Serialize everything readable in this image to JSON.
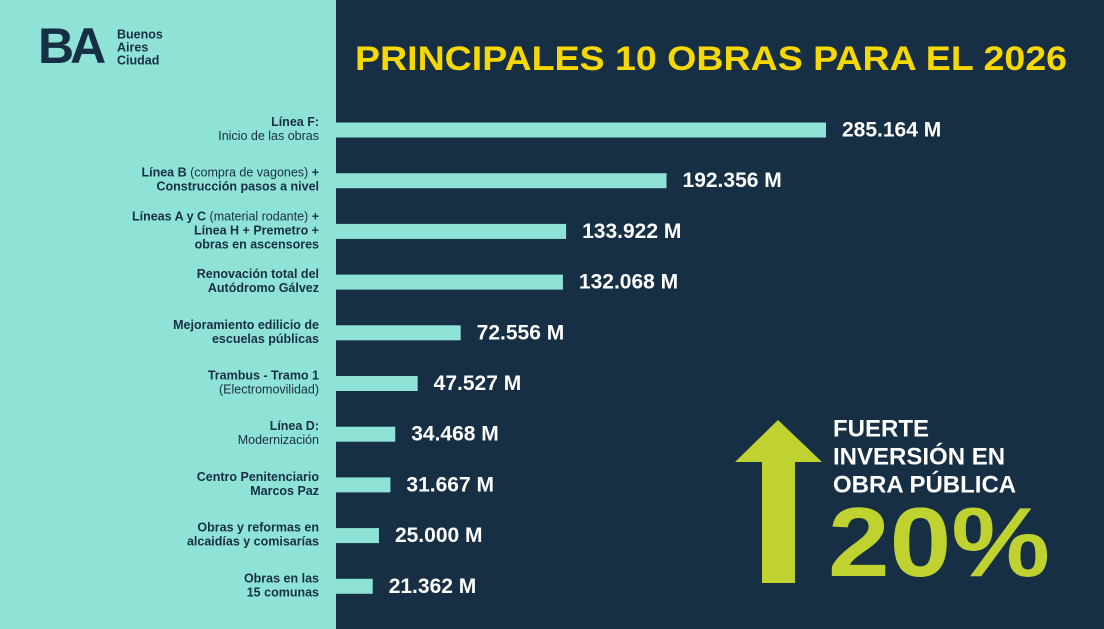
{
  "logo": {
    "mark": "BA",
    "lines": [
      "Buenos",
      "Aires",
      "Ciudad"
    ]
  },
  "chart_data": {
    "type": "bar",
    "orientation": "horizontal",
    "title": "PRINCIPALES  10 OBRAS PARA EL 2026",
    "categories": [
      [
        [
          {
            "text": "Línea F:",
            "bold": true
          }
        ],
        [
          {
            "text": "Inicio de las obras",
            "bold": false
          }
        ]
      ],
      [
        [
          {
            "text": "Línea B",
            "bold": true
          },
          {
            "text": " (compra de vagones) ",
            "bold": false
          },
          {
            "text": "+",
            "bold": true
          }
        ],
        [
          {
            "text": "Construcción pasos a nivel",
            "bold": true
          }
        ]
      ],
      [
        [
          {
            "text": "Líneas A y C",
            "bold": true
          },
          {
            "text": " (material rodante) ",
            "bold": false
          },
          {
            "text": "+",
            "bold": true
          }
        ],
        [
          {
            "text": "Línea H + Premetro +",
            "bold": true
          }
        ],
        [
          {
            "text": "obras en ascensores",
            "bold": true
          }
        ]
      ],
      [
        [
          {
            "text": "Renovación total del",
            "bold": true
          }
        ],
        [
          {
            "text": "Autódromo Gálvez",
            "bold": true
          }
        ]
      ],
      [
        [
          {
            "text": "Mejoramiento edilicio de",
            "bold": true
          }
        ],
        [
          {
            "text": "escuelas públicas",
            "bold": true
          }
        ]
      ],
      [
        [
          {
            "text": "Trambus - Tramo 1",
            "bold": true
          }
        ],
        [
          {
            "text": "(Electromovilidad)",
            "bold": false
          }
        ]
      ],
      [
        [
          {
            "text": "Línea D:",
            "bold": true
          }
        ],
        [
          {
            "text": "Modernización",
            "bold": false
          }
        ]
      ],
      [
        [
          {
            "text": "Centro Penitenciario",
            "bold": true
          }
        ],
        [
          {
            "text": "Marcos Paz",
            "bold": true
          }
        ]
      ],
      [
        [
          {
            "text": "Obras y reformas en",
            "bold": true
          }
        ],
        [
          {
            "text": "alcaidías y comisarías",
            "bold": true
          }
        ]
      ],
      [
        [
          {
            "text": "Obras en las",
            "bold": true
          }
        ],
        [
          {
            "text": "15 comunas",
            "bold": true
          }
        ]
      ]
    ],
    "values": [
      285164,
      192356,
      133922,
      132068,
      72556,
      47527,
      34468,
      31667,
      25000,
      21362
    ],
    "value_labels": [
      "285.164 M",
      "192.356 M",
      "133.922 M",
      "132.068 M",
      "72.556 M",
      "47.527 M",
      "34.468 M",
      "31.667 M",
      "25.000 M",
      "21.362 M"
    ],
    "color": "#8fe3d6"
  },
  "callout": {
    "lines": [
      "FUERTE",
      "INVERSIÓN EN",
      "OBRA PÚBLICA"
    ],
    "figure": "20%"
  }
}
